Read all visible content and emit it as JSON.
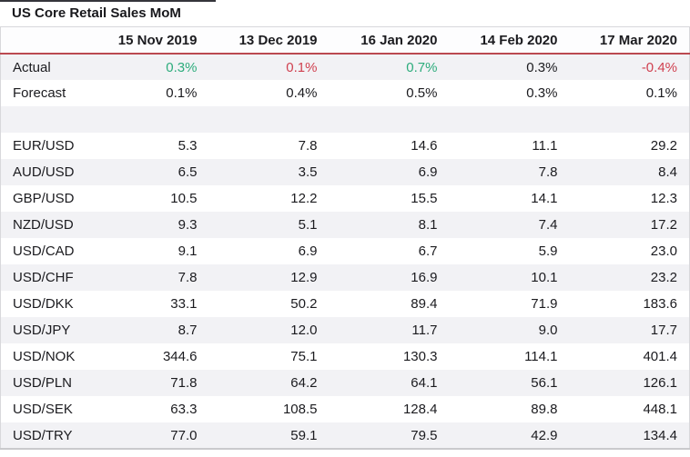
{
  "title": "US Core Retail Sales MoM",
  "chart_data": {
    "type": "table",
    "title": "US Core Retail Sales MoM",
    "columns": [
      "15 Nov 2019",
      "13 Dec 2019",
      "16 Jan 2020",
      "14 Feb 2020",
      "17 Mar 2020"
    ],
    "rows": [
      {
        "label": "Actual",
        "values": [
          "0.3%",
          "0.1%",
          "0.7%",
          "0.3%",
          "-0.4%"
        ],
        "value_colors": [
          "positive",
          "negative",
          "positive",
          "neutral",
          "negative"
        ]
      },
      {
        "label": "Forecast",
        "values": [
          "0.1%",
          "0.4%",
          "0.5%",
          "0.3%",
          "0.1%"
        ]
      },
      {
        "label": "",
        "values": [
          "",
          "",
          "",
          "",
          ""
        ],
        "spacer": true
      },
      {
        "label": "EUR/USD",
        "values": [
          "5.3",
          "7.8",
          "14.6",
          "11.1",
          "29.2"
        ]
      },
      {
        "label": "AUD/USD",
        "values": [
          "6.5",
          "3.5",
          "6.9",
          "7.8",
          "8.4"
        ]
      },
      {
        "label": "GBP/USD",
        "values": [
          "10.5",
          "12.2",
          "15.5",
          "14.1",
          "12.3"
        ]
      },
      {
        "label": "NZD/USD",
        "values": [
          "9.3",
          "5.1",
          "8.1",
          "7.4",
          "17.2"
        ]
      },
      {
        "label": "USD/CAD",
        "values": [
          "9.1",
          "6.9",
          "6.7",
          "5.9",
          "23.0"
        ]
      },
      {
        "label": "USD/CHF",
        "values": [
          "7.8",
          "12.9",
          "16.9",
          "10.1",
          "23.2"
        ]
      },
      {
        "label": "USD/DKK",
        "values": [
          "33.1",
          "50.2",
          "89.4",
          "71.9",
          "183.6"
        ]
      },
      {
        "label": "USD/JPY",
        "values": [
          "8.7",
          "12.0",
          "11.7",
          "9.0",
          "17.7"
        ]
      },
      {
        "label": "USD/NOK",
        "values": [
          "344.6",
          "75.1",
          "130.3",
          "114.1",
          "401.4"
        ]
      },
      {
        "label": "USD/PLN",
        "values": [
          "71.8",
          "64.2",
          "64.1",
          "56.1",
          "126.1"
        ]
      },
      {
        "label": "USD/SEK",
        "values": [
          "63.3",
          "108.5",
          "128.4",
          "89.8",
          "448.1"
        ]
      },
      {
        "label": "USD/TRY",
        "values": [
          "77.0",
          "59.1",
          "79.5",
          "42.9",
          "134.4"
        ]
      }
    ]
  },
  "colors": {
    "positive": "#2dac7c",
    "negative": "#d04150",
    "header_rule": "#bb4950",
    "stripe": "#f2f2f5",
    "border": "#d8d8db",
    "text": "#1b1b1f"
  }
}
